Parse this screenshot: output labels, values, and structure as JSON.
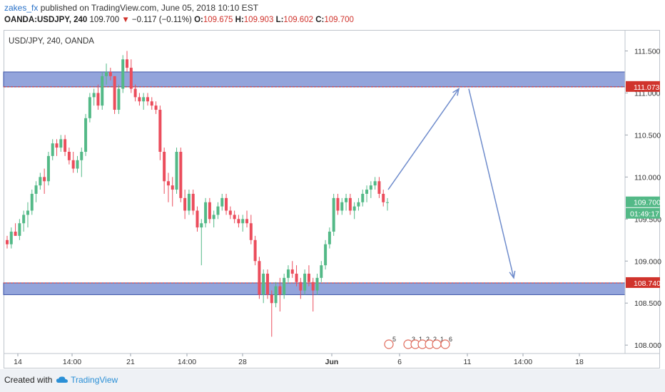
{
  "header": {
    "author": "zakes_fx",
    "published_text": "published on TradingView.com, June 05, 2018 10:10 EST",
    "symbol": "OANDA:USDJPY, 240",
    "last": "109.700",
    "change": "−0.117 (−0.11%)",
    "o_label": "O:",
    "o_value": "109.675",
    "h_label": "H:",
    "h_value": "109.903",
    "l_label": "L:",
    "l_value": "109.602",
    "c_label": "C:",
    "c_value": "109.700"
  },
  "chart_label": "USD/JPY, 240, OANDA",
  "footer": {
    "created": "Created with",
    "brand": "TradingView"
  },
  "colors": {
    "up": "#53b987",
    "down": "#eb4d5c",
    "zone": "#6f86cf",
    "arrow": "#6f8ccc",
    "dashed": "#e0322b"
  },
  "chart_data": {
    "type": "candlestick",
    "y_ticks": [
      "111.500",
      "111.000",
      "110.500",
      "110.000",
      "109.500",
      "109.000",
      "108.500",
      "108.000"
    ],
    "y_tick_values": [
      111.5,
      111.0,
      110.5,
      110.0,
      109.5,
      109.0,
      108.5,
      108.0
    ],
    "ylim": [
      107.9,
      111.75
    ],
    "x_ticks": [
      "14",
      "14:00",
      "21",
      "14:00",
      "28",
      "Jun",
      "6",
      "11",
      "14:00",
      "18"
    ],
    "price_label_top": "111.073",
    "price_label_bottom": "108.740",
    "price_label_last": "109.700",
    "countdown": "01:49:17",
    "zones": [
      {
        "from": 111.073,
        "to": 111.25
      },
      {
        "from": 108.6,
        "to": 108.74
      }
    ],
    "projection": [
      {
        "date": "Jun 5",
        "price": 109.85
      },
      {
        "date": "Jun 11",
        "price": 111.05
      },
      {
        "date": "Jun 14",
        "price": 108.8
      }
    ],
    "event_badges": [
      "5",
      "3",
      "1",
      "2",
      "2",
      "1",
      "6"
    ],
    "candles": [
      [
        109.25,
        109.3,
        109.15,
        109.2
      ],
      [
        109.2,
        109.4,
        109.15,
        109.35
      ],
      [
        109.35,
        109.45,
        109.3,
        109.3
      ],
      [
        109.3,
        109.5,
        109.25,
        109.45
      ],
      [
        109.45,
        109.6,
        109.35,
        109.55
      ],
      [
        109.55,
        109.7,
        109.4,
        109.6
      ],
      [
        109.6,
        109.85,
        109.55,
        109.8
      ],
      [
        109.8,
        109.95,
        109.7,
        109.9
      ],
      [
        109.9,
        110.05,
        109.85,
        110.0
      ],
      [
        110.0,
        110.1,
        109.8,
        109.95
      ],
      [
        109.95,
        110.3,
        109.9,
        110.25
      ],
      [
        110.25,
        110.45,
        110.2,
        110.4
      ],
      [
        110.4,
        110.45,
        110.25,
        110.35
      ],
      [
        110.35,
        110.5,
        110.3,
        110.45
      ],
      [
        110.45,
        110.5,
        110.25,
        110.3
      ],
      [
        110.3,
        110.35,
        110.15,
        110.2
      ],
      [
        110.2,
        110.3,
        110.05,
        110.1
      ],
      [
        110.1,
        110.25,
        110.05,
        110.2
      ],
      [
        110.2,
        110.35,
        110.0,
        110.3
      ],
      [
        110.3,
        110.75,
        110.25,
        110.7
      ],
      [
        110.7,
        111.0,
        110.65,
        110.95
      ],
      [
        110.95,
        111.05,
        110.85,
        111.0
      ],
      [
        111.0,
        111.1,
        110.8,
        110.85
      ],
      [
        110.85,
        111.25,
        110.8,
        111.2
      ],
      [
        111.2,
        111.35,
        111.1,
        111.25
      ],
      [
        111.25,
        111.3,
        111.15,
        111.2
      ],
      [
        111.2,
        111.2,
        110.75,
        110.8
      ],
      [
        110.8,
        111.1,
        110.75,
        111.05
      ],
      [
        111.05,
        111.45,
        111.0,
        111.4
      ],
      [
        111.4,
        111.5,
        111.25,
        111.3
      ],
      [
        111.3,
        111.4,
        111.0,
        111.05
      ],
      [
        111.05,
        111.1,
        110.9,
        110.95
      ],
      [
        110.95,
        111.0,
        110.85,
        110.9
      ],
      [
        110.9,
        111.0,
        110.8,
        110.95
      ],
      [
        110.95,
        111.0,
        110.85,
        110.9
      ],
      [
        110.9,
        110.95,
        110.8,
        110.85
      ],
      [
        110.85,
        110.9,
        110.75,
        110.8
      ],
      [
        110.8,
        110.85,
        110.2,
        110.3
      ],
      [
        110.3,
        110.35,
        109.8,
        109.95
      ],
      [
        109.95,
        110.05,
        109.7,
        109.9
      ],
      [
        109.9,
        110.0,
        109.65,
        109.85
      ],
      [
        109.85,
        110.35,
        109.8,
        110.3
      ],
      [
        110.3,
        110.35,
        109.7,
        109.75
      ],
      [
        109.75,
        109.85,
        109.5,
        109.6
      ],
      [
        109.6,
        109.85,
        109.55,
        109.8
      ],
      [
        109.8,
        109.85,
        109.55,
        109.6
      ],
      [
        109.6,
        109.65,
        109.35,
        109.4
      ],
      [
        109.4,
        109.5,
        108.95,
        109.45
      ],
      [
        109.45,
        109.75,
        109.4,
        109.7
      ],
      [
        109.7,
        109.75,
        109.45,
        109.5
      ],
      [
        109.5,
        109.6,
        109.4,
        109.55
      ],
      [
        109.55,
        109.7,
        109.5,
        109.65
      ],
      [
        109.65,
        109.8,
        109.6,
        109.75
      ],
      [
        109.75,
        109.8,
        109.55,
        109.6
      ],
      [
        109.6,
        109.65,
        109.5,
        109.55
      ],
      [
        109.55,
        109.6,
        109.45,
        109.5
      ],
      [
        109.5,
        109.55,
        109.4,
        109.45
      ],
      [
        109.45,
        109.55,
        109.35,
        109.5
      ],
      [
        109.5,
        109.6,
        109.4,
        109.45
      ],
      [
        109.45,
        109.55,
        109.2,
        109.25
      ],
      [
        109.25,
        109.3,
        108.95,
        109.0
      ],
      [
        109.0,
        109.05,
        108.55,
        108.6
      ],
      [
        108.6,
        108.9,
        108.5,
        108.85
      ],
      [
        108.85,
        108.9,
        108.55,
        108.6
      ],
      [
        108.6,
        108.65,
        108.1,
        108.5
      ],
      [
        108.5,
        108.75,
        108.45,
        108.7
      ],
      [
        108.7,
        108.8,
        108.4,
        108.6
      ],
      [
        108.6,
        108.85,
        108.55,
        108.8
      ],
      [
        108.8,
        108.95,
        108.75,
        108.9
      ],
      [
        108.9,
        109.0,
        108.8,
        108.85
      ],
      [
        108.85,
        108.95,
        108.7,
        108.75
      ],
      [
        108.75,
        108.8,
        108.55,
        108.65
      ],
      [
        108.65,
        108.9,
        108.6,
        108.85
      ],
      [
        108.85,
        108.95,
        108.7,
        108.75
      ],
      [
        108.75,
        108.8,
        108.4,
        108.65
      ],
      [
        108.65,
        108.85,
        108.6,
        108.8
      ],
      [
        108.8,
        109.0,
        108.75,
        108.95
      ],
      [
        108.95,
        109.25,
        108.9,
        109.2
      ],
      [
        109.2,
        109.4,
        109.15,
        109.35
      ],
      [
        109.35,
        109.8,
        109.3,
        109.75
      ],
      [
        109.75,
        109.8,
        109.55,
        109.6
      ],
      [
        109.6,
        109.75,
        109.55,
        109.7
      ],
      [
        109.7,
        109.8,
        109.6,
        109.75
      ],
      [
        109.75,
        109.8,
        109.55,
        109.6
      ],
      [
        109.6,
        109.7,
        109.5,
        109.65
      ],
      [
        109.65,
        109.75,
        109.6,
        109.7
      ],
      [
        109.7,
        109.85,
        109.65,
        109.8
      ],
      [
        109.8,
        109.9,
        109.7,
        109.85
      ],
      [
        109.85,
        109.95,
        109.75,
        109.9
      ],
      [
        109.9,
        110.0,
        109.85,
        109.95
      ],
      [
        109.95,
        110.0,
        109.75,
        109.8
      ],
      [
        109.8,
        109.85,
        109.65,
        109.7
      ],
      [
        109.7,
        109.75,
        109.6,
        109.7
      ]
    ]
  }
}
